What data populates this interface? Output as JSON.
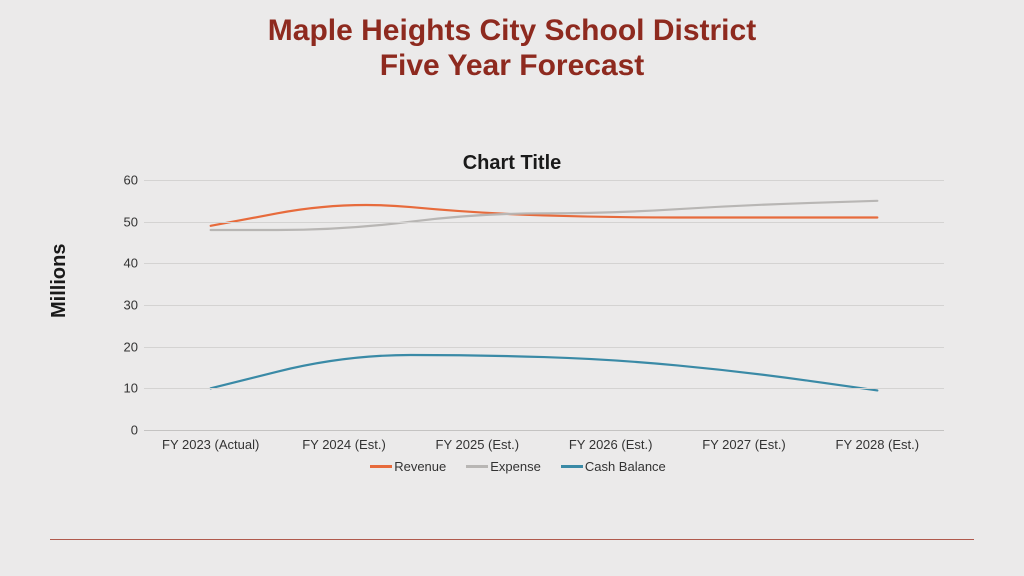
{
  "title_line1": "Maple Heights City School District",
  "title_line2": "Five Year Forecast",
  "title_color": "#8e2a1f",
  "background_color": "#ebeaea",
  "chart": {
    "type": "line",
    "title": "Chart Title",
    "title_fontsize": 20,
    "yaxis_label": "Millions",
    "categories": [
      "FY 2023 (Actual)",
      "FY 2024 (Est.)",
      "FY 2025 (Est.)",
      "FY 2026 (Est.)",
      "FY 2027 (Est.)",
      "FY 2028 (Est.)"
    ],
    "ylim": [
      0,
      60
    ],
    "ytick_step": 10,
    "yticks": [
      0,
      10,
      20,
      30,
      40,
      50,
      60
    ],
    "grid_color": "#d4d3d2",
    "label_fontsize": 13,
    "line_width": 2.2,
    "series": [
      {
        "name": "Revenue",
        "color": "#e76b3c",
        "values": [
          49,
          55,
          52,
          51,
          51,
          51
        ]
      },
      {
        "name": "Expense",
        "color": "#b8b6b4",
        "values": [
          48,
          48,
          52,
          52,
          54,
          55
        ]
      },
      {
        "name": "Cash Balance",
        "color": "#3a8aa6",
        "values": [
          10,
          18,
          18,
          17,
          14,
          9.5
        ]
      }
    ]
  },
  "hr_color": "#b05a4d"
}
